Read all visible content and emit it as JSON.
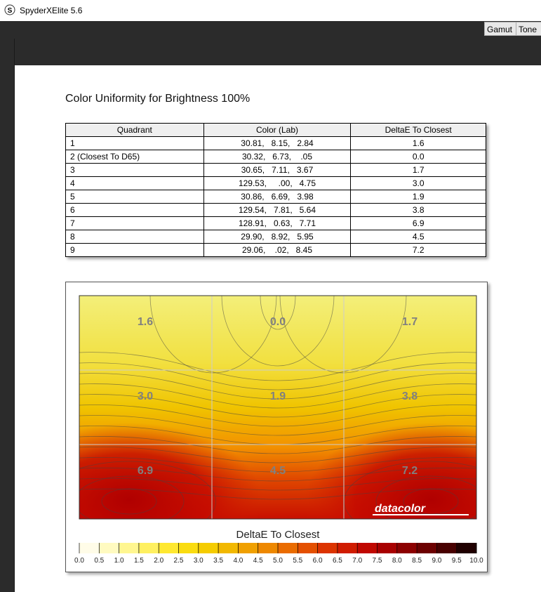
{
  "window": {
    "title": "SpyderXElite 5.6",
    "tabs": [
      "Gamut",
      "Tone F"
    ]
  },
  "report": {
    "title": "Color Uniformity for Brightness 100%"
  },
  "table": {
    "columns": [
      "Quadrant",
      "Color (Lab)",
      "DeltaE To Closest"
    ],
    "rows": [
      [
        "1",
        "30.81,   8.15,   2.84",
        "1.6"
      ],
      [
        "2 (Closest To D65)",
        "30.32,   6.73,    .05",
        "0.0"
      ],
      [
        "3",
        "30.65,   7.11,   3.67",
        "1.7"
      ],
      [
        "4",
        "129.53,     .00,   4.75",
        "3.0"
      ],
      [
        "5",
        "30.86,   6.69,   3.98",
        "1.9"
      ],
      [
        "6",
        "129.54,   7.81,   5.64",
        "3.8"
      ],
      [
        "7",
        "128.91,   0.63,   7.71",
        "6.9"
      ],
      [
        "8",
        "29.90,   8.92,   5.95",
        "4.5"
      ],
      [
        "9",
        "29.06,    .02,   8.45",
        "7.2"
      ]
    ]
  },
  "heatmap": {
    "labels": [
      [
        "1.6",
        "0.0",
        "1.7"
      ],
      [
        "3.0",
        "1.9",
        "3.8"
      ],
      [
        "6.9",
        "4.5",
        "7.2"
      ]
    ],
    "watermark": "datacolor",
    "legend_title": "DeltaE To Closest",
    "legend_ticks": [
      "0.0",
      "0.5",
      "1.0",
      "1.5",
      "2.0",
      "2.5",
      "3.0",
      "3.5",
      "4.0",
      "4.5",
      "5.0",
      "5.5",
      "6.0",
      "6.5",
      "7.0",
      "7.5",
      "8.0",
      "8.5",
      "9.0",
      "9.5",
      "10.0"
    ]
  }
}
